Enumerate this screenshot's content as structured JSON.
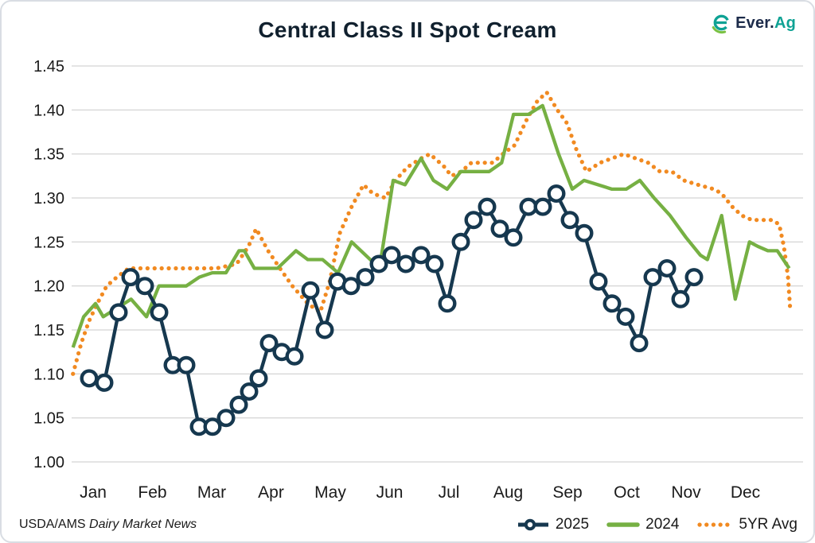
{
  "title": "Central Class II Spot Cream",
  "logo": {
    "part1": "Ever.",
    "part2": "Ag"
  },
  "footer": {
    "source_prefix": "USDA/AMS ",
    "source_name": "Dairy Market News"
  },
  "colors": {
    "navy": "#16384f",
    "green": "#76b043",
    "orange": "#f18a21",
    "grid": "#c9c9c9",
    "axis_text": "#1a1a1a",
    "logo_navy": "#1c2b4a",
    "logo_teal": "#0ea294",
    "logo_green": "#7ac143"
  },
  "chart_data": {
    "type": "line",
    "title": "Central Class II Spot Cream",
    "xlabel": "",
    "ylabel": "",
    "grid": true,
    "legend_position": "bottom-right",
    "x_axis": {
      "labels": [
        "Jan",
        "Feb",
        "Mar",
        "Apr",
        "May",
        "Jun",
        "Jul",
        "Aug",
        "Sep",
        "Oct",
        "Nov",
        "Dec"
      ],
      "unit": "month"
    },
    "y_axis": {
      "min": 1.0,
      "max": 1.45,
      "step": 0.05,
      "tick_format": "0.00"
    },
    "series": [
      {
        "name": "2025",
        "color": "#16384f",
        "style": "line-with-circle-markers",
        "points": [
          [
            -0.067,
            1.095
          ],
          [
            0.188,
            1.09
          ],
          [
            0.43,
            1.17
          ],
          [
            0.631,
            1.21
          ],
          [
            0.872,
            1.2
          ],
          [
            1.114,
            1.17
          ],
          [
            1.342,
            1.11
          ],
          [
            1.57,
            1.11
          ],
          [
            1.785,
            1.04
          ],
          [
            2.013,
            1.04
          ],
          [
            2.242,
            1.05
          ],
          [
            2.456,
            1.065
          ],
          [
            2.631,
            1.08
          ],
          [
            2.792,
            1.095
          ],
          [
            2.966,
            1.135
          ],
          [
            3.181,
            1.125
          ],
          [
            3.396,
            1.12
          ],
          [
            3.664,
            1.195
          ],
          [
            3.906,
            1.15
          ],
          [
            4.121,
            1.205
          ],
          [
            4.349,
            1.2
          ],
          [
            4.591,
            1.21
          ],
          [
            4.819,
            1.225
          ],
          [
            5.034,
            1.235
          ],
          [
            5.275,
            1.225
          ],
          [
            5.53,
            1.235
          ],
          [
            5.758,
            1.225
          ],
          [
            5.973,
            1.18
          ],
          [
            6.201,
            1.25
          ],
          [
            6.416,
            1.275
          ],
          [
            6.644,
            1.29
          ],
          [
            6.859,
            1.265
          ],
          [
            7.087,
            1.255
          ],
          [
            7.342,
            1.29
          ],
          [
            7.584,
            1.29
          ],
          [
            7.812,
            1.305
          ],
          [
            8.04,
            1.275
          ],
          [
            8.282,
            1.26
          ],
          [
            8.523,
            1.205
          ],
          [
            8.752,
            1.18
          ],
          [
            8.98,
            1.165
          ],
          [
            9.208,
            1.135
          ],
          [
            9.436,
            1.21
          ],
          [
            9.678,
            1.22
          ],
          [
            9.906,
            1.185
          ],
          [
            10.134,
            1.21
          ]
        ]
      },
      {
        "name": "2024",
        "color": "#76b043",
        "style": "solid",
        "points": [
          [
            -0.34,
            1.13
          ],
          [
            -0.16,
            1.165
          ],
          [
            0.04,
            1.18
          ],
          [
            0.17,
            1.165
          ],
          [
            0.64,
            1.185
          ],
          [
            0.9,
            1.165
          ],
          [
            1.11,
            1.2
          ],
          [
            1.57,
            1.2
          ],
          [
            1.79,
            1.21
          ],
          [
            2.01,
            1.215
          ],
          [
            2.24,
            1.215
          ],
          [
            2.46,
            1.24
          ],
          [
            2.55,
            1.24
          ],
          [
            2.72,
            1.22
          ],
          [
            3.11,
            1.22
          ],
          [
            3.42,
            1.24
          ],
          [
            3.62,
            1.23
          ],
          [
            3.87,
            1.23
          ],
          [
            4.13,
            1.215
          ],
          [
            4.36,
            1.25
          ],
          [
            4.83,
            1.22
          ],
          [
            5.06,
            1.32
          ],
          [
            5.26,
            1.315
          ],
          [
            5.53,
            1.345
          ],
          [
            5.74,
            1.32
          ],
          [
            5.97,
            1.31
          ],
          [
            6.2,
            1.33
          ],
          [
            6.68,
            1.33
          ],
          [
            6.89,
            1.34
          ],
          [
            7.09,
            1.395
          ],
          [
            7.34,
            1.395
          ],
          [
            7.58,
            1.405
          ],
          [
            7.85,
            1.35
          ],
          [
            8.08,
            1.31
          ],
          [
            8.28,
            1.32
          ],
          [
            8.75,
            1.31
          ],
          [
            8.99,
            1.31
          ],
          [
            9.22,
            1.32
          ],
          [
            9.46,
            1.3
          ],
          [
            9.73,
            1.28
          ],
          [
            10.0,
            1.255
          ],
          [
            10.24,
            1.235
          ],
          [
            10.36,
            1.23
          ],
          [
            10.6,
            1.28
          ],
          [
            10.83,
            1.185
          ],
          [
            11.07,
            1.25
          ],
          [
            11.21,
            1.245
          ],
          [
            11.38,
            1.24
          ],
          [
            11.54,
            1.24
          ],
          [
            11.74,
            1.22
          ]
        ]
      },
      {
        "name": "5YR Avg",
        "color": "#f18a21",
        "style": "dotted",
        "points": [
          [
            -0.34,
            1.1
          ],
          [
            -0.2,
            1.135
          ],
          [
            -0.07,
            1.16
          ],
          [
            0.07,
            1.18
          ],
          [
            0.23,
            1.2
          ],
          [
            0.4,
            1.21
          ],
          [
            0.6,
            1.22
          ],
          [
            0.87,
            1.22
          ],
          [
            1.28,
            1.22
          ],
          [
            1.68,
            1.22
          ],
          [
            2.08,
            1.22
          ],
          [
            2.42,
            1.225
          ],
          [
            2.62,
            1.245
          ],
          [
            2.75,
            1.265
          ],
          [
            2.95,
            1.24
          ],
          [
            3.15,
            1.22
          ],
          [
            3.36,
            1.2
          ],
          [
            3.62,
            1.18
          ],
          [
            3.83,
            1.17
          ],
          [
            3.99,
            1.205
          ],
          [
            4.16,
            1.26
          ],
          [
            4.36,
            1.29
          ],
          [
            4.56,
            1.315
          ],
          [
            4.72,
            1.305
          ],
          [
            4.93,
            1.3
          ],
          [
            5.1,
            1.32
          ],
          [
            5.3,
            1.335
          ],
          [
            5.53,
            1.345
          ],
          [
            5.68,
            1.35
          ],
          [
            5.93,
            1.335
          ],
          [
            6.04,
            1.325
          ],
          [
            6.21,
            1.33
          ],
          [
            6.38,
            1.34
          ],
          [
            6.58,
            1.34
          ],
          [
            6.74,
            1.34
          ],
          [
            6.91,
            1.35
          ],
          [
            7.11,
            1.36
          ],
          [
            7.32,
            1.39
          ],
          [
            7.49,
            1.41
          ],
          [
            7.65,
            1.42
          ],
          [
            7.83,
            1.4
          ],
          [
            7.99,
            1.385
          ],
          [
            8.15,
            1.355
          ],
          [
            8.32,
            1.33
          ],
          [
            8.55,
            1.34
          ],
          [
            8.75,
            1.345
          ],
          [
            8.95,
            1.35
          ],
          [
            9.15,
            1.345
          ],
          [
            9.36,
            1.34
          ],
          [
            9.56,
            1.33
          ],
          [
            9.76,
            1.33
          ],
          [
            9.96,
            1.32
          ],
          [
            10.2,
            1.315
          ],
          [
            10.47,
            1.31
          ],
          [
            10.6,
            1.305
          ],
          [
            10.78,
            1.29
          ],
          [
            10.94,
            1.28
          ],
          [
            11.11,
            1.275
          ],
          [
            11.27,
            1.275
          ],
          [
            11.45,
            1.275
          ],
          [
            11.57,
            1.27
          ],
          [
            11.65,
            1.245
          ],
          [
            11.72,
            1.21
          ],
          [
            11.76,
            1.17
          ]
        ]
      }
    ]
  }
}
